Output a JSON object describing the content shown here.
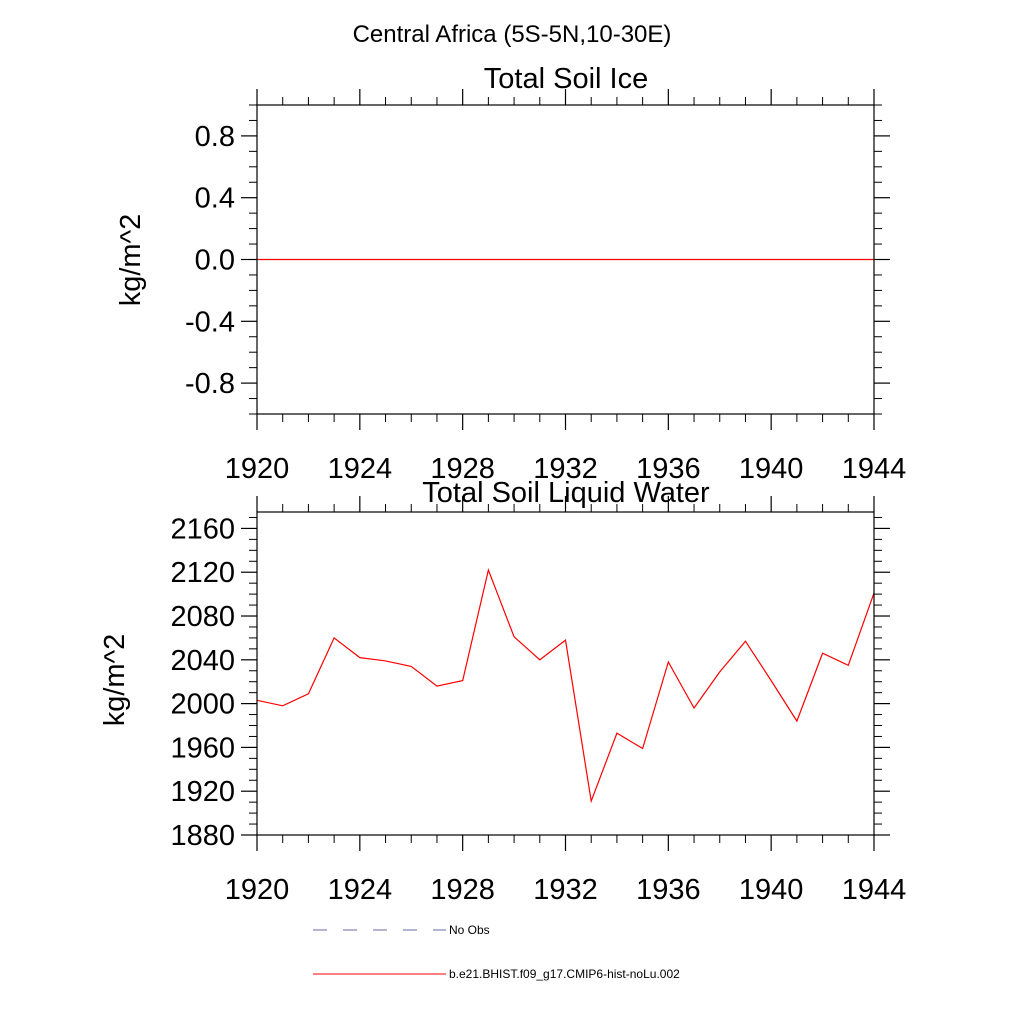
{
  "main_title": "Central Africa (5S-5N,10-30E)",
  "colors": {
    "model": "#ff0000",
    "obs": "#6a6aa8",
    "axis": "#000000"
  },
  "legend": {
    "obs_label": "No Obs",
    "model_label": "b.e21.BHIST.f09_g17.CMIP6-hist-noLu.002"
  },
  "chart_data": [
    {
      "type": "line",
      "title": "Total Soil Ice",
      "xlabel": "",
      "ylabel": "kg/m^2",
      "xlim": [
        1920,
        1944
      ],
      "ylim": [
        -1.0,
        1.0
      ],
      "x_ticks": [
        1920,
        1924,
        1928,
        1932,
        1936,
        1940,
        1944
      ],
      "x_tick_labels": [
        "1920",
        "1924",
        "1928",
        "1932",
        "1936",
        "1940",
        "1944"
      ],
      "y_ticks": [
        -0.8,
        -0.4,
        0.0,
        0.4,
        0.8
      ],
      "y_tick_labels": [
        "-0.8",
        "-0.4",
        "0.0",
        "0.4",
        "0.8"
      ],
      "grid": false,
      "series": [
        {
          "name": "b.e21.BHIST.f09_g17.CMIP6-hist-noLu.002",
          "x": [
            1920,
            1921,
            1922,
            1923,
            1924,
            1925,
            1926,
            1927,
            1928,
            1929,
            1930,
            1931,
            1932,
            1933,
            1934,
            1935,
            1936,
            1937,
            1938,
            1939,
            1940,
            1941,
            1942,
            1943,
            1944
          ],
          "values": [
            0,
            0,
            0,
            0,
            0,
            0,
            0,
            0,
            0,
            0,
            0,
            0,
            0,
            0,
            0,
            0,
            0,
            0,
            0,
            0,
            0,
            0,
            0,
            0,
            0
          ]
        }
      ]
    },
    {
      "type": "line",
      "title": "Total Soil Liquid Water",
      "xlabel": "",
      "ylabel": "kg/m^2",
      "xlim": [
        1920,
        1944
      ],
      "ylim": [
        1880,
        2175
      ],
      "x_ticks": [
        1920,
        1924,
        1928,
        1932,
        1936,
        1940,
        1944
      ],
      "x_tick_labels": [
        "1920",
        "1924",
        "1928",
        "1932",
        "1936",
        "1940",
        "1944"
      ],
      "y_ticks": [
        1880,
        1920,
        1960,
        2000,
        2040,
        2080,
        2120,
        2160
      ],
      "y_tick_labels": [
        "1880",
        "1920",
        "1960",
        "2000",
        "2040",
        "2080",
        "2120",
        "2160"
      ],
      "grid": false,
      "series": [
        {
          "name": "b.e21.BHIST.f09_g17.CMIP6-hist-noLu.002",
          "x": [
            1920,
            1921,
            1922,
            1923,
            1924,
            1925,
            1926,
            1927,
            1928,
            1929,
            1930,
            1931,
            1932,
            1933,
            1934,
            1935,
            1936,
            1937,
            1938,
            1939,
            1940,
            1941,
            1942,
            1943,
            1944
          ],
          "values": [
            2003,
            1998,
            2009,
            2060,
            2042,
            2039,
            2034,
            2016,
            2021,
            2122,
            2061,
            2040,
            2058,
            1911,
            1973,
            1959,
            2038,
            1996,
            2029,
            2057,
            2021,
            1984,
            2046,
            2035,
            2101
          ]
        }
      ]
    }
  ]
}
